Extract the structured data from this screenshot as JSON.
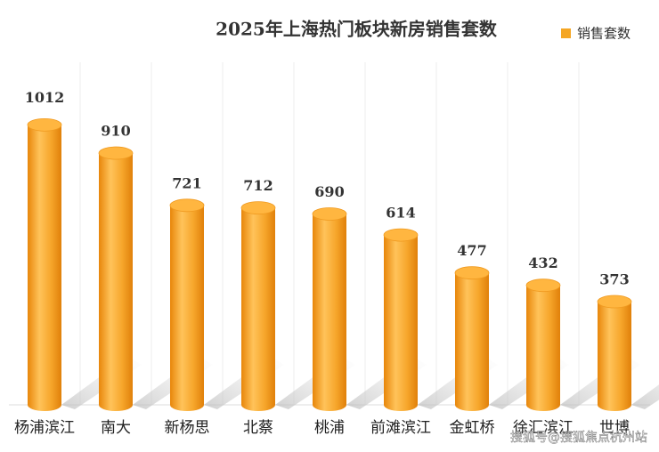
{
  "chart_data": {
    "type": "bar",
    "title": "2025年上海热门板块新房销售套数",
    "categories": [
      "杨浦滨江",
      "南大",
      "新杨思",
      "北蔡",
      "桃浦",
      "前滩滨江",
      "金虹桥",
      "徐汇滨江",
      "世博"
    ],
    "series": [
      {
        "name": "销售套数",
        "color": "#f5a623",
        "values": [
          1012,
          910,
          721,
          712,
          690,
          614,
          477,
          432,
          373
        ]
      }
    ],
    "ylim": [
      0,
      1100
    ],
    "highlight_color": "#c00000",
    "legend": "top-right",
    "watermark": "搜狐号@搜狐焦点杭州站"
  }
}
